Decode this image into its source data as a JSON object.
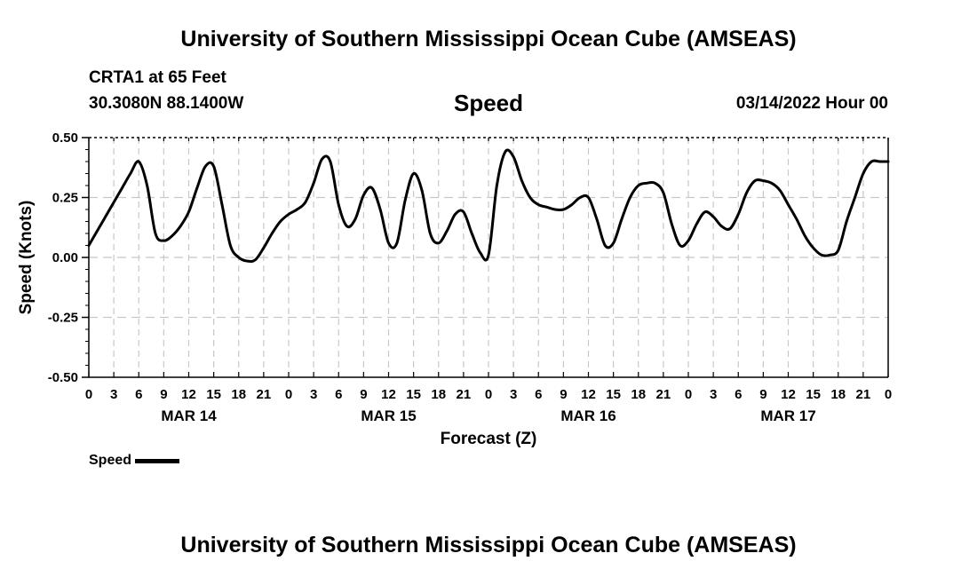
{
  "header": {
    "title_top": "University of Southern Mississippi Ocean Cube (AMSEAS)",
    "station": "CRTA1 at 65 Feet",
    "coords": "30.3080N  88.1400W",
    "plot_title": "Speed",
    "datetime": "03/14/2022 Hour 00",
    "title_bottom": "University of Southern Mississippi Ocean Cube (AMSEAS)"
  },
  "legend": {
    "label": "Speed"
  },
  "chart_data": {
    "type": "line",
    "title": "Speed",
    "xlabel": "Forecast (Z)",
    "ylabel": "Speed (Knots)",
    "xlim": [
      0,
      96
    ],
    "ylim": [
      -0.5,
      0.5
    ],
    "grid": true,
    "y_ticks": [
      "-0.50",
      "-0.25",
      "0.00",
      "0.25",
      "0.50"
    ],
    "y_tick_values": [
      -0.5,
      -0.25,
      0.0,
      0.25,
      0.5
    ],
    "x_tick_labels": [
      "0",
      "3",
      "6",
      "9",
      "12",
      "15",
      "18",
      "21",
      "0",
      "3",
      "6",
      "9",
      "12",
      "15",
      "18",
      "21",
      "0",
      "3",
      "6",
      "9",
      "12",
      "15",
      "18",
      "21",
      "0",
      "3",
      "6",
      "9",
      "12",
      "15",
      "18",
      "21",
      "0"
    ],
    "date_labels": [
      {
        "label": "MAR 14",
        "hour": 12
      },
      {
        "label": "MAR 15",
        "hour": 36
      },
      {
        "label": "MAR 16",
        "hour": 60
      },
      {
        "label": "MAR 17",
        "hour": 84
      }
    ],
    "series": [
      {
        "name": "Speed",
        "color": "#000000",
        "x": [
          0,
          1,
          2,
          3,
          4,
          5,
          6,
          7,
          8,
          9,
          10,
          11,
          12,
          13,
          14,
          15,
          16,
          17,
          18,
          19,
          20,
          21,
          22,
          23,
          24,
          25,
          26,
          27,
          28,
          29,
          30,
          31,
          32,
          33,
          34,
          35,
          36,
          37,
          38,
          39,
          40,
          41,
          42,
          43,
          44,
          45,
          46,
          47,
          48,
          49,
          50,
          51,
          52,
          53,
          54,
          55,
          56,
          57,
          58,
          59,
          60,
          61,
          62,
          63,
          64,
          65,
          66,
          67,
          68,
          69,
          70,
          71,
          72,
          73,
          74,
          75,
          76,
          77,
          78,
          79,
          80,
          81,
          82,
          83,
          84,
          85,
          86,
          87,
          88,
          89,
          90,
          91,
          92,
          93,
          94,
          95,
          96
        ],
        "values": [
          0.05,
          0.11,
          0.17,
          0.23,
          0.29,
          0.35,
          0.4,
          0.3,
          0.1,
          0.07,
          0.09,
          0.13,
          0.19,
          0.29,
          0.38,
          0.38,
          0.22,
          0.05,
          0.0,
          -0.015,
          -0.01,
          0.04,
          0.1,
          0.15,
          0.18,
          0.2,
          0.23,
          0.31,
          0.41,
          0.4,
          0.22,
          0.13,
          0.16,
          0.26,
          0.29,
          0.2,
          0.06,
          0.06,
          0.24,
          0.35,
          0.28,
          0.1,
          0.06,
          0.11,
          0.18,
          0.19,
          0.1,
          0.02,
          0.01,
          0.3,
          0.44,
          0.42,
          0.32,
          0.25,
          0.22,
          0.21,
          0.2,
          0.2,
          0.22,
          0.25,
          0.25,
          0.16,
          0.05,
          0.06,
          0.16,
          0.25,
          0.3,
          0.31,
          0.31,
          0.27,
          0.14,
          0.05,
          0.07,
          0.14,
          0.19,
          0.17,
          0.13,
          0.12,
          0.18,
          0.27,
          0.32,
          0.32,
          0.31,
          0.28,
          0.22,
          0.16,
          0.09,
          0.04,
          0.01,
          0.01,
          0.03,
          0.15,
          0.25,
          0.35,
          0.4,
          0.4,
          0.4
        ]
      }
    ]
  }
}
